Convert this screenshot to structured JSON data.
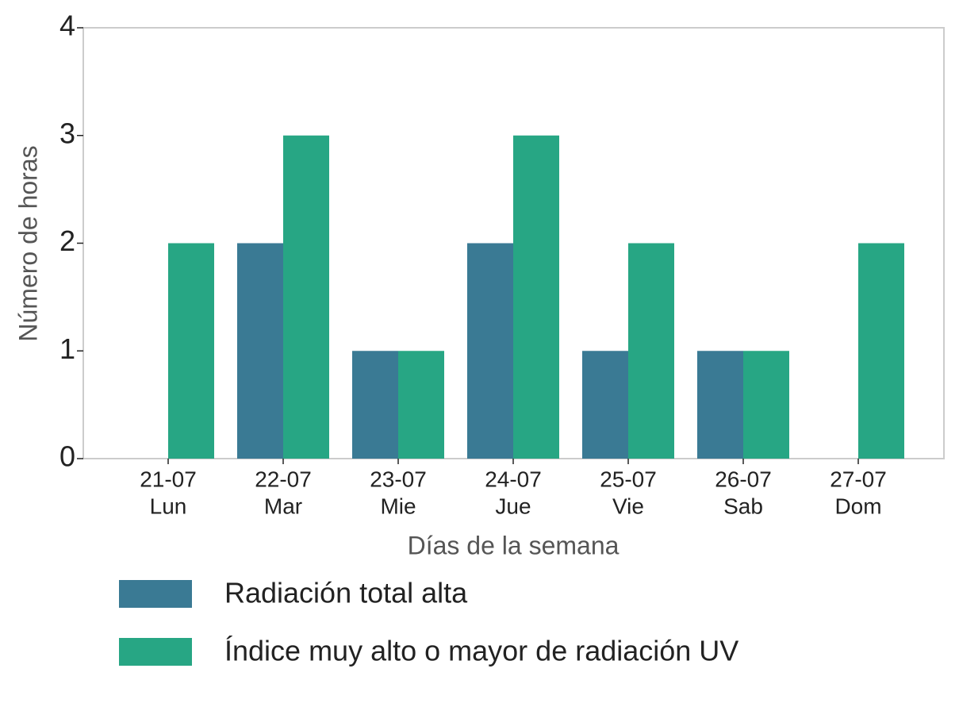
{
  "chart_data": {
    "type": "grouped-bar",
    "xlabel": "Días de la semana",
    "ylabel": "Número de horas",
    "categories": [
      [
        "21-07",
        "Lun"
      ],
      [
        "22-07",
        "Mar"
      ],
      [
        "23-07",
        "Mie"
      ],
      [
        "24-07",
        "Jue"
      ],
      [
        "25-07",
        "Vie"
      ],
      [
        "26-07",
        "Sab"
      ],
      [
        "27-07",
        "Dom"
      ]
    ],
    "series": [
      {
        "name": "Radiación total alta",
        "color": "#3a7a94",
        "values": [
          0,
          2,
          1,
          2,
          1,
          1,
          0
        ]
      },
      {
        "name": "Índice muy alto o mayor de radiación UV",
        "color": "#27a684",
        "values": [
          2,
          3,
          1,
          3,
          2,
          1,
          2
        ]
      }
    ],
    "ylim": [
      0,
      4
    ],
    "yticks": [
      0,
      1,
      2,
      3,
      4
    ],
    "grid": false,
    "legend": "bottom"
  }
}
